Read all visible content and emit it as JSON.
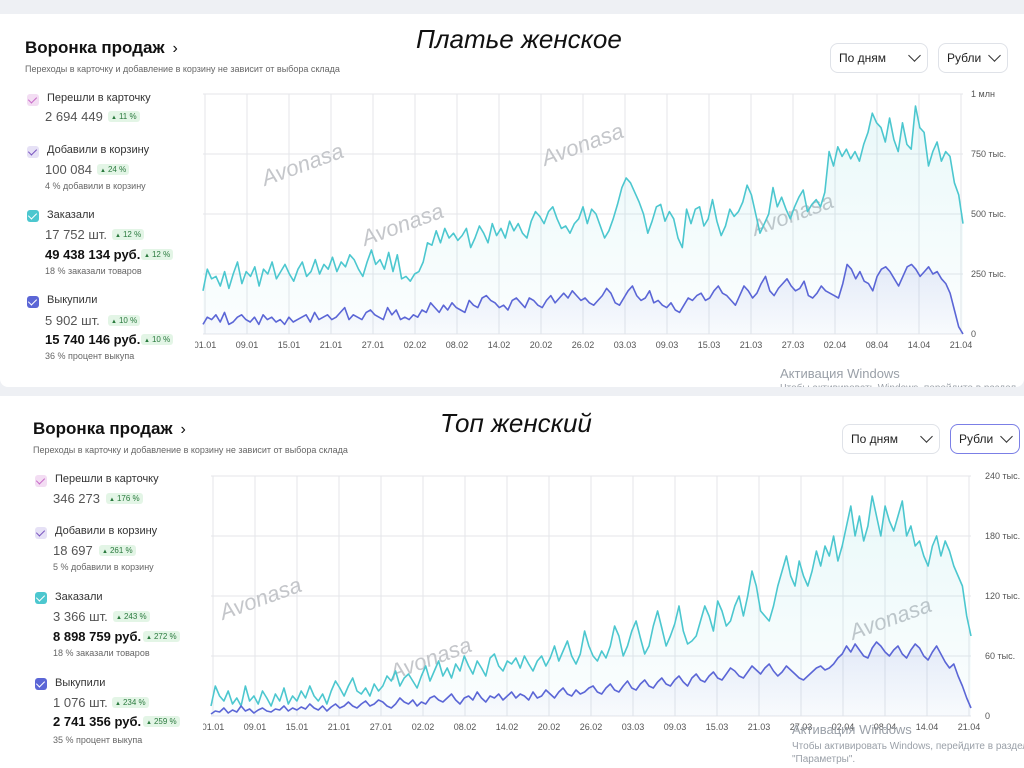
{
  "panels": [
    {
      "big_title": "Платье женское",
      "funnel_title": "Воронка продаж",
      "subtitle": "Переходы в карточку и добавление в корзину не зависит от выбора склада",
      "period_select": "По дням",
      "currency_select": "Рубли",
      "metrics": {
        "cards": {
          "label": "Перешли в карточку",
          "value": "2 694 449",
          "badge": "11 %"
        },
        "cart": {
          "label": "Добавили в корзину",
          "value": "100 084",
          "badge": "24 %",
          "note": "4 % добавили в корзину"
        },
        "ordered": {
          "label": "Заказали",
          "value": "17 752 шт.",
          "badge": "12 %",
          "value2": "49 438 134 руб.",
          "badge2": "12 %",
          "note": "18 % заказали товаров"
        },
        "bought": {
          "label": "Выкупили",
          "value": "5 902 шт.",
          "badge": "10 %",
          "value2": "15 740 146 руб.",
          "badge2": "10 %",
          "note": "36 % процент выкупа"
        }
      }
    },
    {
      "big_title": "Топ женский",
      "funnel_title": "Воронка продаж",
      "subtitle": "Переходы в карточку и добавление в корзину не зависит от выбора склада",
      "period_select": "По дням",
      "currency_select": "Рубли",
      "metrics": {
        "cards": {
          "label": "Перешли в карточку",
          "value": "346 273",
          "badge": "176 %"
        },
        "cart": {
          "label": "Добавили в корзину",
          "value": "18 697",
          "badge": "261 %",
          "note": "5 % добавили в корзину"
        },
        "ordered": {
          "label": "Заказали",
          "value": "3 366 шт.",
          "badge": "243 %",
          "value2": "8 898 759 руб.",
          "badge2": "272 %",
          "note": "18 % заказали товаров"
        },
        "bought": {
          "label": "Выкупили",
          "value": "1 076 шт.",
          "badge": "234 %",
          "value2": "2 741 356 руб.",
          "badge2": "259 %",
          "note": "35 % процент выкупа"
        }
      }
    }
  ],
  "watermark": "Avonasa",
  "windows_activation": {
    "title": "Активация Windows",
    "line1": "Чтобы активировать Windows, перейдите в раздел",
    "line2": "\"Параметры\"."
  },
  "colors": {
    "cards_line": "#4cc7cf",
    "bought_line": "#5b66d6"
  },
  "chart_data": [
    {
      "type": "line",
      "x_tick_labels": [
        "01.01",
        "09.01",
        "15.01",
        "21.01",
        "27.01",
        "02.02",
        "08.02",
        "14.02",
        "20.02",
        "26.02",
        "03.03",
        "09.03",
        "15.03",
        "21.03",
        "27.03",
        "02.04",
        "08.04",
        "14.04",
        "21.04"
      ],
      "y_tick_labels": [
        "0",
        "250 тыс.",
        "500 тыс.",
        "750 тыс.",
        "1 млн"
      ],
      "ylim": [
        0,
        1000000
      ],
      "series": [
        {
          "values": [
            180,
            270,
            230,
            240,
            200,
            260,
            190,
            250,
            300,
            210,
            260,
            240,
            280,
            200,
            270,
            250,
            300,
            230,
            260,
            290,
            250,
            220,
            270,
            300,
            240,
            260,
            310,
            250,
            290,
            270,
            320,
            260,
            300,
            280,
            330,
            310,
            270,
            240,
            300,
            350,
            290,
            310,
            270,
            340,
            260,
            330,
            230,
            240,
            220,
            250,
            260,
            300,
            380,
            370,
            430,
            380,
            440,
            400,
            420,
            390,
            410,
            440,
            360,
            400,
            450,
            420,
            380,
            460,
            410,
            440,
            400,
            470,
            430,
            460,
            420,
            400,
            470,
            510,
            490,
            460,
            510,
            530,
            480,
            440,
            450,
            420,
            460,
            480,
            530,
            460,
            520,
            500,
            450,
            400,
            430,
            480,
            540,
            610,
            650,
            630,
            590,
            550,
            500,
            420,
            470,
            530,
            540,
            470,
            510,
            480,
            400,
            360,
            520,
            460,
            520,
            530,
            450,
            480,
            560,
            470,
            410,
            450,
            520,
            490,
            510,
            550,
            620,
            580,
            500,
            420,
            460,
            500,
            610,
            530,
            570,
            520,
            480,
            530,
            570,
            600,
            510,
            540,
            560,
            530,
            590,
            760,
            700,
            780,
            740,
            770,
            730,
            760,
            720,
            790,
            840,
            920,
            880,
            860,
            800,
            900,
            810,
            760,
            880,
            790,
            770,
            950,
            860,
            840,
            700,
            760,
            800,
            720,
            760,
            740,
            630,
            580,
            460
          ],
          "name": ""
        },
        {
          "values": [
            40,
            70,
            60,
            80,
            50,
            90,
            40,
            50,
            70,
            80,
            60,
            50,
            70,
            40,
            80,
            60,
            70,
            50,
            60,
            40,
            70,
            50,
            60,
            70,
            80,
            50,
            90,
            60,
            70,
            80,
            60,
            70,
            90,
            110,
            60,
            80,
            70,
            60,
            90,
            100,
            80,
            70,
            60,
            110,
            80,
            100,
            60,
            70,
            60,
            80,
            70,
            100,
            90,
            130,
            110,
            90,
            120,
            100,
            130,
            110,
            100,
            90,
            140,
            120,
            110,
            150,
            160,
            140,
            130,
            110,
            120,
            100,
            140,
            150,
            130,
            110,
            150,
            140,
            120,
            110,
            140,
            160,
            130,
            150,
            170,
            150,
            180,
            160,
            140,
            150,
            130,
            120,
            140,
            160,
            190,
            170,
            130,
            120,
            150,
            180,
            200,
            160,
            140,
            150,
            180,
            130,
            140,
            120,
            110,
            130,
            100,
            90,
            120,
            150,
            140,
            160,
            170,
            140,
            150,
            180,
            200,
            170,
            160,
            140,
            120,
            160,
            200,
            180,
            150,
            170,
            210,
            240,
            180,
            160,
            190,
            210,
            230,
            200,
            180,
            190,
            220,
            160,
            150,
            170,
            200,
            180,
            170,
            160,
            150,
            210,
            290,
            270,
            230,
            260,
            220,
            210,
            180,
            240,
            270,
            280,
            260,
            230,
            200,
            240,
            280,
            290,
            270,
            240,
            260,
            280,
            250,
            260,
            230,
            210,
            170,
            100,
            30,
            0
          ],
          "name": ""
        }
      ]
    },
    {
      "type": "line",
      "x_tick_labels": [
        "01.01",
        "09.01",
        "15.01",
        "21.01",
        "27.01",
        "02.02",
        "08.02",
        "14.02",
        "20.02",
        "26.02",
        "03.03",
        "09.03",
        "15.03",
        "21.03",
        "27.03",
        "02.04",
        "08.04",
        "14.04",
        "21.04"
      ],
      "y_tick_labels": [
        "0",
        "60 тыс.",
        "120 тыс.",
        "180 тыс.",
        "240 тыс."
      ],
      "ylim": [
        0,
        240000
      ],
      "series": [
        {
          "values": [
            10,
            30,
            20,
            15,
            25,
            12,
            18,
            10,
            30,
            15,
            20,
            12,
            25,
            18,
            10,
            22,
            15,
            28,
            12,
            20,
            15,
            25,
            18,
            30,
            20,
            15,
            22,
            12,
            25,
            35,
            28,
            20,
            30,
            38,
            25,
            22,
            28,
            20,
            32,
            25,
            30,
            40,
            35,
            45,
            30,
            38,
            42,
            35,
            28,
            40,
            50,
            35,
            45,
            55,
            40,
            48,
            38,
            52,
            45,
            60,
            50,
            42,
            55,
            48,
            40,
            58,
            62,
            50,
            45,
            55,
            52,
            58,
            48,
            60,
            52,
            45,
            55,
            60,
            50,
            58,
            70,
            55,
            65,
            75,
            60,
            52,
            62,
            85,
            70,
            60,
            55,
            65,
            58,
            70,
            90,
            80,
            60,
            70,
            85,
            95,
            78,
            62,
            70,
            90,
            105,
            88,
            70,
            80,
            92,
            110,
            85,
            72,
            75,
            80,
            95,
            110,
            100,
            85,
            115,
            105,
            90,
            95,
            110,
            120,
            100,
            120,
            145,
            130,
            105,
            100,
            95,
            110,
            130,
            145,
            160,
            140,
            130,
            155,
            140,
            130,
            145,
            165,
            150,
            170,
            160,
            180,
            155,
            170,
            190,
            210,
            180,
            200,
            175,
            190,
            220,
            200,
            180,
            210,
            195,
            185,
            200,
            215,
            180,
            190,
            170,
            175,
            160,
            150,
            170,
            180,
            160,
            175,
            165,
            150,
            140,
            130,
            100,
            80
          ],
          "name": ""
        },
        {
          "values": [
            2,
            5,
            4,
            8,
            3,
            6,
            4,
            10,
            5,
            7,
            3,
            6,
            8,
            5,
            4,
            7,
            6,
            10,
            5,
            8,
            6,
            9,
            7,
            12,
            8,
            6,
            10,
            5,
            9,
            12,
            8,
            10,
            14,
            10,
            8,
            12,
            15,
            10,
            12,
            16,
            14,
            10,
            8,
            12,
            18,
            14,
            12,
            16,
            10,
            14,
            12,
            18,
            20,
            16,
            14,
            18,
            22,
            16,
            12,
            18,
            20,
            16,
            24,
            18,
            14,
            20,
            18,
            22,
            16,
            20,
            24,
            18,
            22,
            20,
            16,
            24,
            18,
            20,
            26,
            22,
            18,
            24,
            28,
            22,
            20,
            26,
            22,
            24,
            28,
            30,
            24,
            22,
            28,
            32,
            26,
            24,
            30,
            35,
            28,
            26,
            32,
            36,
            30,
            28,
            34,
            38,
            32,
            30,
            36,
            40,
            34,
            30,
            38,
            42,
            36,
            34,
            40,
            44,
            38,
            36,
            42,
            48,
            45,
            40,
            38,
            44,
            50,
            46,
            42,
            48,
            52,
            45,
            40,
            44,
            50,
            46,
            42,
            38,
            36,
            40,
            44,
            48,
            50,
            46,
            48,
            52,
            58,
            62,
            70,
            64,
            72,
            66,
            60,
            58,
            68,
            74,
            70,
            64,
            60,
            66,
            70,
            62,
            58,
            66,
            72,
            68,
            60,
            56,
            64,
            70,
            62,
            54,
            48,
            52,
            40,
            30,
            18,
            8
          ],
          "name": ""
        }
      ]
    }
  ]
}
